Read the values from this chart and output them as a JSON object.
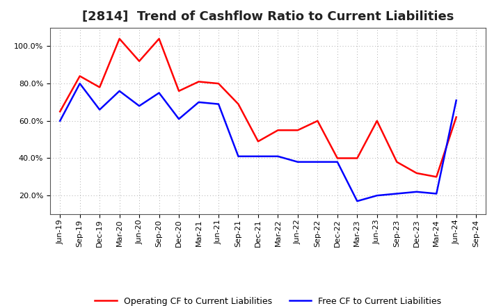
{
  "title": "[2814]  Trend of Cashflow Ratio to Current Liabilities",
  "x_labels": [
    "Jun-19",
    "Sep-19",
    "Dec-19",
    "Mar-20",
    "Jun-20",
    "Sep-20",
    "Dec-20",
    "Mar-21",
    "Jun-21",
    "Sep-21",
    "Dec-21",
    "Mar-22",
    "Jun-22",
    "Sep-22",
    "Dec-22",
    "Mar-23",
    "Jun-23",
    "Sep-23",
    "Dec-23",
    "Mar-24",
    "Jun-24",
    "Sep-24"
  ],
  "operating_cf": [
    0.65,
    0.84,
    0.78,
    1.04,
    0.92,
    1.04,
    0.76,
    0.81,
    0.8,
    0.69,
    0.49,
    0.55,
    0.55,
    0.6,
    0.4,
    0.4,
    0.6,
    0.38,
    0.32,
    0.3,
    0.62,
    null
  ],
  "free_cf": [
    0.6,
    0.8,
    0.66,
    0.76,
    0.68,
    0.75,
    0.61,
    0.7,
    0.69,
    0.41,
    0.41,
    0.41,
    0.38,
    0.38,
    0.38,
    0.17,
    0.2,
    0.21,
    0.22,
    0.21,
    0.71,
    null
  ],
  "operating_color": "#ff0000",
  "free_color": "#0000ff",
  "ylim_min": 0.1,
  "ylim_max": 1.1,
  "yticks": [
    0.2,
    0.4,
    0.6,
    0.8,
    1.0
  ],
  "background_color": "#ffffff",
  "grid_color": "#aaaaaa",
  "title_fontsize": 13,
  "tick_fontsize": 8,
  "legend_fontsize": 9
}
